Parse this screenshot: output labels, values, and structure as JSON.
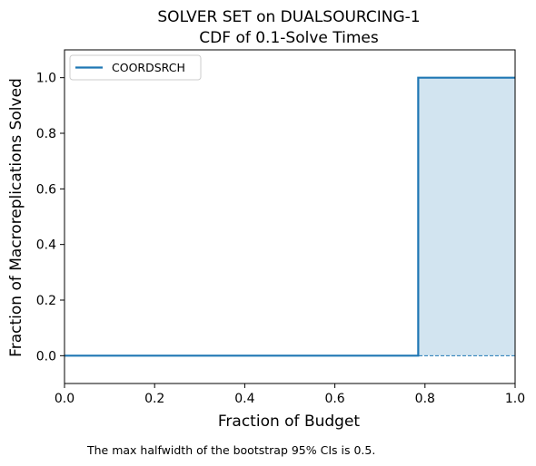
{
  "chart_data": {
    "type": "line",
    "title": "SOLVER SET on DUALSOURCING-1",
    "subtitle": "CDF of 0.1-Solve Times",
    "xlabel": "Fraction of Budget",
    "ylabel": "Fraction of Macroreplications Solved",
    "xlim": [
      0.0,
      1.0
    ],
    "ylim": [
      -0.1,
      1.1
    ],
    "xticks": [
      "0.0",
      "0.2",
      "0.4",
      "0.6",
      "0.8",
      "1.0"
    ],
    "yticks": [
      "0.0",
      "0.2",
      "0.4",
      "0.6",
      "0.8",
      "1.0"
    ],
    "grid": false,
    "legend_position": "top-left",
    "series": [
      {
        "name": "COORDSRCH",
        "color": "#1f77b4",
        "step": true,
        "x": [
          0.0,
          0.785,
          0.785,
          1.0
        ],
        "y": [
          0.0,
          0.0,
          1.0,
          1.0
        ],
        "ci_lower": [
          0.0,
          0.0,
          0.0,
          0.0
        ],
        "ci_upper": [
          0.0,
          0.0,
          1.0,
          1.0
        ]
      }
    ],
    "annotation": "The max halfwidth of the bootstrap 95% CIs is 0.5."
  }
}
